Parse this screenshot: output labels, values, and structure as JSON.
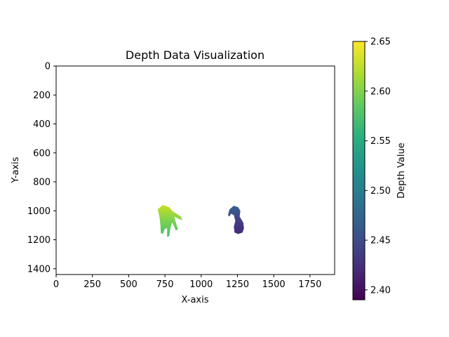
{
  "chart_data": {
    "type": "heatmap",
    "title": "Depth Data Visualization",
    "xlabel": "X-axis",
    "ylabel": "Y-axis",
    "xlim": [
      0,
      1920
    ],
    "ylim": [
      1440,
      0
    ],
    "xticks": [
      0,
      250,
      500,
      750,
      1000,
      1250,
      1500,
      1750
    ],
    "yticks": [
      0,
      200,
      400,
      600,
      800,
      1000,
      1200,
      1400
    ],
    "grid": false,
    "colormap": "viridis",
    "colorbar": {
      "label": "Depth Value",
      "range": [
        2.39,
        2.65
      ],
      "ticks": [
        2.4,
        2.45,
        2.5,
        2.55,
        2.6,
        2.65
      ]
    },
    "regions": [
      {
        "name": "left hand",
        "depth_range": [
          2.57,
          2.64
        ],
        "polygon": [
          [
            700,
            990
          ],
          [
            735,
            960
          ],
          [
            780,
            975
          ],
          [
            800,
            1000
          ],
          [
            830,
            1020
          ],
          [
            860,
            1040
          ],
          [
            870,
            1065
          ],
          [
            845,
            1055
          ],
          [
            815,
            1040
          ],
          [
            825,
            1080
          ],
          [
            840,
            1130
          ],
          [
            825,
            1135
          ],
          [
            800,
            1080
          ],
          [
            790,
            1110
          ],
          [
            780,
            1175
          ],
          [
            765,
            1180
          ],
          [
            765,
            1120
          ],
          [
            750,
            1125
          ],
          [
            735,
            1160
          ],
          [
            722,
            1155
          ],
          [
            718,
            1090
          ],
          [
            712,
            1040
          ]
        ]
      },
      {
        "name": "right hand",
        "depth_range": [
          2.4,
          2.47
        ],
        "polygon": [
          [
            1185,
            1030
          ],
          [
            1195,
            990
          ],
          [
            1225,
            965
          ],
          [
            1255,
            975
          ],
          [
            1270,
            1000
          ],
          [
            1265,
            1040
          ],
          [
            1290,
            1080
          ],
          [
            1295,
            1120
          ],
          [
            1285,
            1150
          ],
          [
            1255,
            1160
          ],
          [
            1230,
            1150
          ],
          [
            1225,
            1110
          ],
          [
            1235,
            1070
          ],
          [
            1225,
            1030
          ],
          [
            1205,
            1020
          ],
          [
            1195,
            1040
          ]
        ]
      }
    ]
  }
}
